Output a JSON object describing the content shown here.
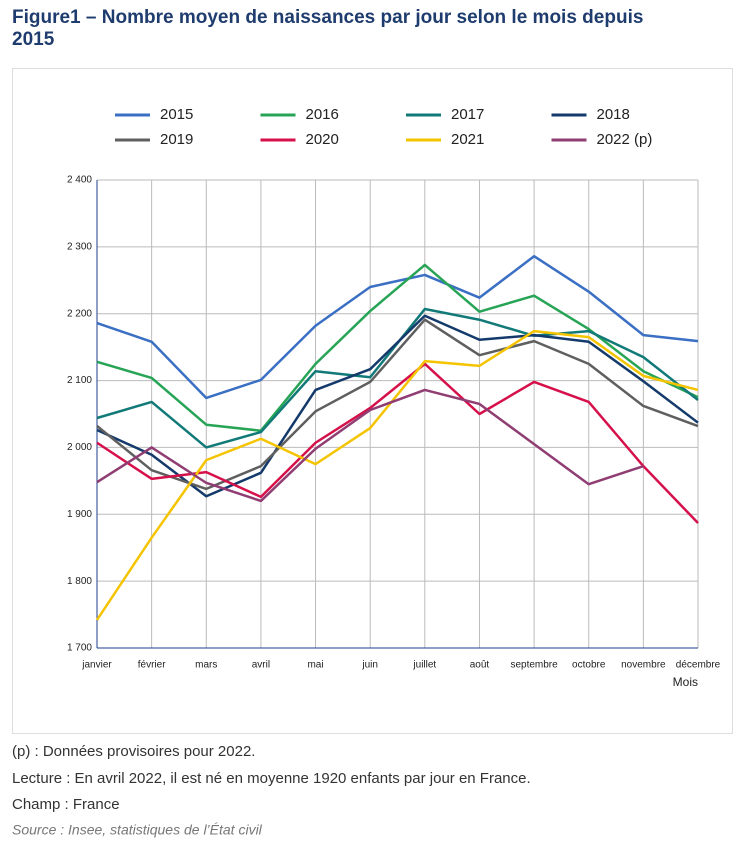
{
  "chart_data": {
    "type": "line",
    "title": [
      "Figure1 – Nombre moyen de naissances par jour selon le mois depuis",
      "2015"
    ],
    "xlabel": "Mois",
    "categories": [
      "janvier",
      "février",
      "mars",
      "avril",
      "mai",
      "juin",
      "juillet",
      "août",
      "septembre",
      "octobre",
      "novembre",
      "décembre"
    ],
    "series": [
      {
        "name": "2015",
        "color": "#3a6fc4",
        "values": [
          2186,
          2158,
          2074,
          2101,
          2182,
          2240,
          2258,
          2224,
          2286,
          2233,
          2168,
          2159
        ]
      },
      {
        "name": "2016",
        "color": "#27a455",
        "values": [
          2128,
          2104,
          2034,
          2025,
          2125,
          2204,
          2273,
          2203,
          2227,
          2177,
          2114,
          2075
        ]
      },
      {
        "name": "2017",
        "color": "#117a78",
        "values": [
          2044,
          2068,
          2000,
          2023,
          2114,
          2105,
          2207,
          2191,
          2167,
          2174,
          2135,
          2071
        ]
      },
      {
        "name": "2018",
        "color": "#143a6b",
        "values": [
          2026,
          1989,
          1927,
          1962,
          2086,
          2117,
          2197,
          2161,
          2168,
          2158,
          2099,
          2037
        ]
      },
      {
        "name": "2019",
        "color": "#5f5f5f",
        "values": [
          2032,
          1966,
          1938,
          1972,
          2054,
          2098,
          2191,
          2138,
          2159,
          2125,
          2062,
          2032
        ]
      },
      {
        "name": "2020",
        "color": "#d6104a",
        "values": [
          2007,
          1953,
          1963,
          1926,
          2007,
          2059,
          2125,
          2050,
          2098,
          2068,
          1972,
          1887
        ]
      },
      {
        "name": "2021",
        "color": "#f5c400",
        "values": [
          1742,
          1865,
          1981,
          2013,
          1975,
          2029,
          2129,
          2122,
          2174,
          2165,
          2107,
          2086
        ]
      },
      {
        "name": "2022 (p)",
        "color": "#8f3d72",
        "values": [
          1948,
          2000,
          1947,
          1920,
          1998,
          2056,
          2086,
          2065,
          2005,
          1945,
          1972,
          null
        ]
      }
    ],
    "ylim": [
      1700,
      2400
    ],
    "yticks": [
      {
        "value": 1700,
        "label": "1 700"
      },
      {
        "value": 1800,
        "label": "1 800"
      },
      {
        "value": 1900,
        "label": "1 900"
      },
      {
        "value": 2000,
        "label": "2 000"
      },
      {
        "value": 2100,
        "label": "2 100"
      },
      {
        "value": 2200,
        "label": "2 200"
      },
      {
        "value": 2300,
        "label": "2 300"
      },
      {
        "value": 2400,
        "label": "2 400"
      }
    ],
    "grid": true,
    "notes": [
      "(p) : Données provisoires pour 2022.",
      "Lecture : En avril 2022, il est né en moyenne 1920 enfants par jour en France.",
      "Champ : France"
    ],
    "source": "Source : Insee, statistiques de l’État civil"
  }
}
